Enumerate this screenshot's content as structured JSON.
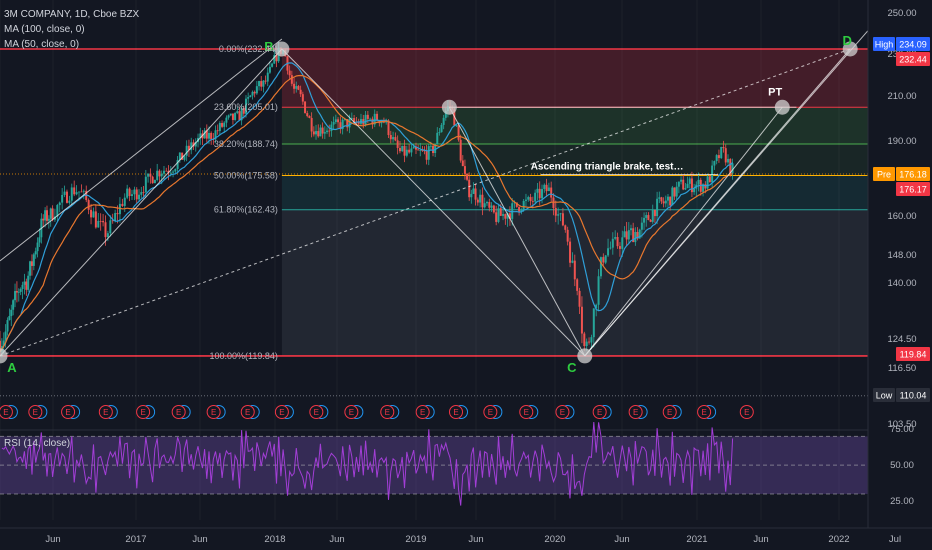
{
  "header": {
    "symbol_line": "3M COMPANY, 1D, Cboe BZX",
    "ma100_label": "MA (100, close, 0)",
    "ma50_label": "MA (50, close, 0)",
    "rsi_label": "RSI (14, close)"
  },
  "colors": {
    "background": "#131722",
    "up": "#26a69a",
    "down": "#ef5350",
    "ma100": "#e8772e",
    "ma50": "#2f9fd8",
    "fib_red": "#f23645",
    "fib_green": "#4caf50",
    "rsi_line": "#a23ed6",
    "point_label": "#2ecc40"
  },
  "chart_data": {
    "type": "candlestick",
    "price_axis_ticks": [
      "250.00",
      "230.00",
      "210.00",
      "190.00",
      "176.18",
      "160.00",
      "148.00",
      "140.00",
      "124.50",
      "116.50",
      "103.50"
    ],
    "time_axis_ticks": [
      "Jun",
      "2017",
      "Jun",
      "2018",
      "Jun",
      "2019",
      "Jun",
      "2020",
      "Jun",
      "2021",
      "Jun",
      "2022",
      "Jul"
    ],
    "badges": [
      {
        "text": "High",
        "value": "234.09",
        "color": "#2962ff"
      },
      {
        "text": "",
        "value": "232.44",
        "color": "#f23645"
      },
      {
        "text": "Pre",
        "value": "176.18",
        "color": "#ff9800"
      },
      {
        "text": "",
        "value": "176.17",
        "color": "#f23645"
      },
      {
        "text": "",
        "value": "119.84",
        "color": "#f23645"
      },
      {
        "text": "Low",
        "value": "110.04",
        "color": "#2a2e39"
      }
    ],
    "fib_levels": [
      {
        "label": "0.00%(232.44)",
        "price": 232.44
      },
      {
        "label": "23.60%(205.01)",
        "price": 205.01
      },
      {
        "label": "38.20%(188.74)",
        "price": 188.74
      },
      {
        "label": "50.00%(175.58)",
        "price": 175.58
      },
      {
        "label": "61.80%(162.43)",
        "price": 162.43
      },
      {
        "label": "100.00%(119.84)",
        "price": 119.84
      }
    ],
    "points": [
      {
        "label": "A",
        "date": 2016.0,
        "price": 119.84
      },
      {
        "label": "B",
        "date": 2018.05,
        "price": 232.44
      },
      {
        "label": "C",
        "date": 2020.2,
        "price": 119.84
      },
      {
        "label": "D",
        "date": 2022.1,
        "price": 232.44
      }
    ],
    "target_label": "PT",
    "annotation": "Ascending triangle brake, test…",
    "earnings_marker": "E",
    "rsi": {
      "ticks": [
        "75.00",
        "50.00",
        "25.00"
      ],
      "upper": 70,
      "lower": 30
    }
  }
}
